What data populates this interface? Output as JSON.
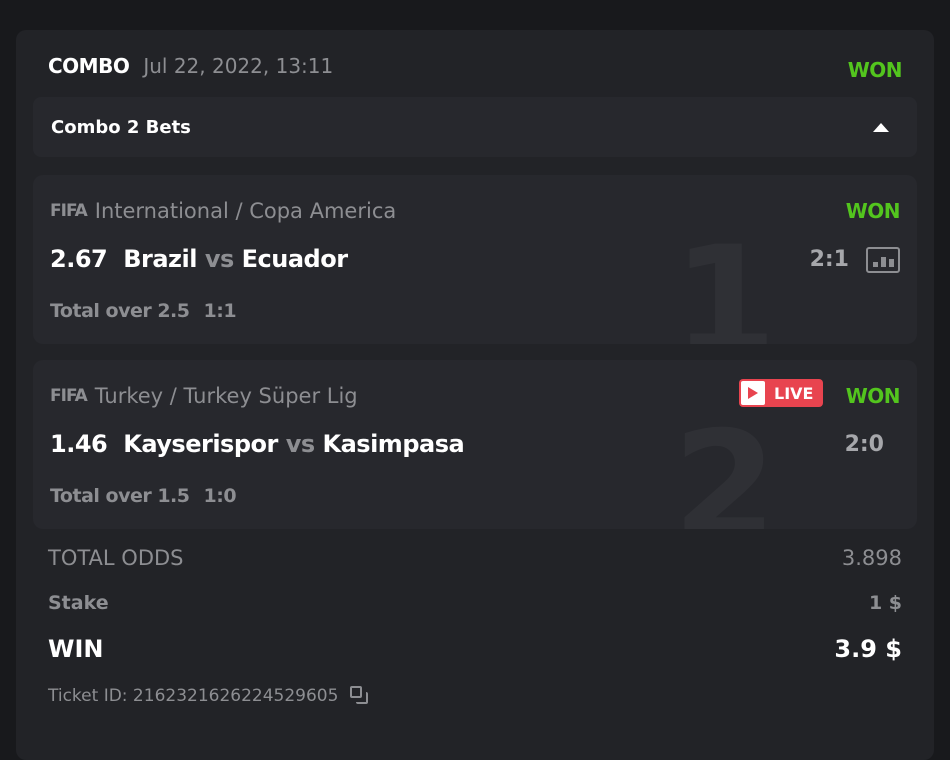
{
  "header": {
    "type": "COMBO",
    "date": "Jul 22, 2022, 13:11",
    "status": "WON"
  },
  "combo_bar": {
    "label": "Combo 2 Bets",
    "icon": "triangle-up-icon"
  },
  "bets": [
    {
      "index": "1",
      "brand": "FIFA",
      "league": "International / Copa America",
      "odds": "2.67",
      "home": "Brazil",
      "vs": "vs",
      "away": "Ecuador",
      "score": "2:1",
      "market": "Total over 2.5",
      "market_score": "1:1",
      "status": "WON",
      "live": false
    },
    {
      "index": "2",
      "brand": "FIFA",
      "league": "Turkey / Turkey Süper Lig",
      "odds": "1.46",
      "home": "Kayserispor",
      "vs": "vs",
      "away": "Kasimpasa",
      "score": "2:0",
      "market": "Total over 1.5",
      "market_score": "1:0",
      "status": "WON",
      "live": true,
      "live_label": "LIVE"
    }
  ],
  "summary": {
    "total_odds_label": "TOTAL ODDS",
    "total_odds": "3.898",
    "stake_label": "Stake",
    "stake": "1 $",
    "win_label": "WIN",
    "win": "3.9 $",
    "ticket_label": "Ticket ID: 2162321626224529605"
  },
  "colors": {
    "won": "#53c51e",
    "live": "#e8444f",
    "background": "#18191c",
    "card": "#222327"
  }
}
